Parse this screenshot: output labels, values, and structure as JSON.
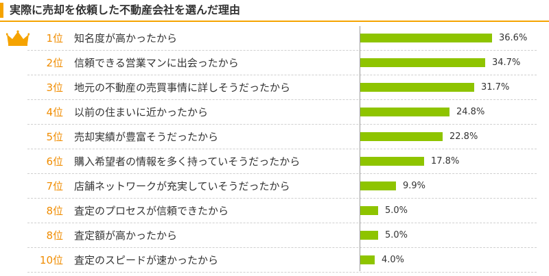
{
  "chart_data": {
    "type": "bar",
    "orientation": "horizontal",
    "title": "実際に売却を依頼した不動産会社を選んだ理由",
    "unit": "%",
    "xlim": [
      0,
      40
    ],
    "grid": false,
    "colors": {
      "bar": "#8ec400",
      "rank": "#f08c00",
      "accent": "#f5a300",
      "crown": "#f5a300"
    },
    "items": [
      {
        "rank": "1位",
        "label": "知名度が高かったから",
        "value": 36.6,
        "value_label": "36.6%"
      },
      {
        "rank": "2位",
        "label": "信頼できる営業マンに出会ったから",
        "value": 34.7,
        "value_label": "34.7%"
      },
      {
        "rank": "3位",
        "label": "地元の不動産の売買事情に詳しそうだったから",
        "value": 31.7,
        "value_label": "31.7%"
      },
      {
        "rank": "4位",
        "label": "以前の住まいに近かったから",
        "value": 24.8,
        "value_label": "24.8%"
      },
      {
        "rank": "5位",
        "label": "売却実績が豊富そうだったから",
        "value": 22.8,
        "value_label": "22.8%"
      },
      {
        "rank": "6位",
        "label": "購入希望者の情報を多く持っていそうだったから",
        "value": 17.8,
        "value_label": "17.8%"
      },
      {
        "rank": "7位",
        "label": "店舗ネットワークが充実していそうだったから",
        "value": 9.9,
        "value_label": "9.9%"
      },
      {
        "rank": "8位",
        "label": "査定のプロセスが信頼できたから",
        "value": 5.0,
        "value_label": "5.0%"
      },
      {
        "rank": "8位",
        "label": "査定額が高かったから",
        "value": 5.0,
        "value_label": "5.0%"
      },
      {
        "rank": "10位",
        "label": "査定のスピードが速かったから",
        "value": 4.0,
        "value_label": "4.0%"
      }
    ]
  }
}
